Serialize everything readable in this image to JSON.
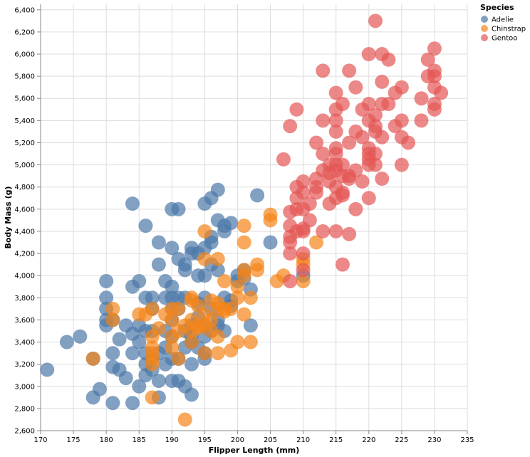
{
  "chart_data": {
    "type": "scatter",
    "xlabel": "Flipper Length (mm)",
    "ylabel": "Body Mass (g)",
    "xlim": [
      170,
      235
    ],
    "ylim": [
      2600,
      6450
    ],
    "x_ticks": [
      "170",
      "175",
      "180",
      "185",
      "190",
      "195",
      "200",
      "205",
      "210",
      "215",
      "220",
      "225",
      "230",
      "235"
    ],
    "y_ticks": [
      "2,600",
      "2,800",
      "3,000",
      "3,200",
      "3,400",
      "3,600",
      "3,800",
      "4,000",
      "4,200",
      "4,400",
      "4,600",
      "4,800",
      "5,000",
      "5,200",
      "5,400",
      "5,600",
      "5,800",
      "6,000",
      "6,200",
      "6,400"
    ],
    "grid": true,
    "legend": {
      "title": "Species",
      "placement": "top-right"
    },
    "series": [
      {
        "name": "Adelie",
        "color": "#4c78a8",
        "points": [
          [
            171,
            3150
          ],
          [
            174,
            3400
          ],
          [
            176,
            3450
          ],
          [
            178,
            2900
          ],
          [
            178,
            3250
          ],
          [
            179,
            2975
          ],
          [
            180,
            3550
          ],
          [
            180,
            3600
          ],
          [
            180,
            3700
          ],
          [
            180,
            3800
          ],
          [
            180,
            3950
          ],
          [
            181,
            2850
          ],
          [
            181,
            3300
          ],
          [
            181,
            3175
          ],
          [
            181,
            3600
          ],
          [
            182,
            3150
          ],
          [
            182,
            3425
          ],
          [
            183,
            3075
          ],
          [
            183,
            3550
          ],
          [
            184,
            2850
          ],
          [
            184,
            3300
          ],
          [
            184,
            3475
          ],
          [
            184,
            3900
          ],
          [
            184,
            4650
          ],
          [
            185,
            3550
          ],
          [
            185,
            3950
          ],
          [
            185,
            3400
          ],
          [
            185,
            3000
          ],
          [
            186,
            3100
          ],
          [
            186,
            3500
          ],
          [
            186,
            3800
          ],
          [
            186,
            4450
          ],
          [
            186,
            3300
          ],
          [
            186,
            3200
          ],
          [
            187,
            3250
          ],
          [
            187,
            3150
          ],
          [
            187,
            3800
          ],
          [
            187,
            3700
          ],
          [
            187,
            3500
          ],
          [
            188,
            2900
          ],
          [
            188,
            3300
          ],
          [
            188,
            3050
          ],
          [
            188,
            4100
          ],
          [
            188,
            4300
          ],
          [
            189,
            3200
          ],
          [
            189,
            3350
          ],
          [
            189,
            3800
          ],
          [
            189,
            3500
          ],
          [
            189,
            3950
          ],
          [
            190,
            3050
          ],
          [
            190,
            3250
          ],
          [
            190,
            3450
          ],
          [
            190,
            3600
          ],
          [
            190,
            3700
          ],
          [
            190,
            3800
          ],
          [
            190,
            3900
          ],
          [
            190,
            4250
          ],
          [
            190,
            4600
          ],
          [
            191,
            3050
          ],
          [
            191,
            3250
          ],
          [
            191,
            3700
          ],
          [
            191,
            3800
          ],
          [
            191,
            4150
          ],
          [
            191,
            4600
          ],
          [
            192,
            3000
          ],
          [
            192,
            3350
          ],
          [
            192,
            3500
          ],
          [
            192,
            3800
          ],
          [
            192,
            4050
          ],
          [
            192,
            4100
          ],
          [
            193,
            2925
          ],
          [
            193,
            3200
          ],
          [
            193,
            3400
          ],
          [
            193,
            3450
          ],
          [
            193,
            3550
          ],
          [
            193,
            4250
          ],
          [
            193,
            4200
          ],
          [
            194,
            3350
          ],
          [
            194,
            3625
          ],
          [
            194,
            3750
          ],
          [
            194,
            4000
          ],
          [
            194,
            4200
          ],
          [
            195,
            3250
          ],
          [
            195,
            3300
          ],
          [
            195,
            3450
          ],
          [
            195,
            3550
          ],
          [
            195,
            3800
          ],
          [
            195,
            4000
          ],
          [
            195,
            4250
          ],
          [
            195,
            4650
          ],
          [
            196,
            3500
          ],
          [
            196,
            3700
          ],
          [
            196,
            4300
          ],
          [
            196,
            4700
          ],
          [
            196,
            4100
          ],
          [
            196,
            4350
          ],
          [
            197,
            3550
          ],
          [
            197,
            4500
          ],
          [
            197,
            4775
          ],
          [
            197,
            4050
          ],
          [
            197,
            3600
          ],
          [
            198,
            3500
          ],
          [
            198,
            3800
          ],
          [
            198,
            4400
          ],
          [
            198,
            4450
          ],
          [
            199,
            3725
          ],
          [
            199,
            3775
          ],
          [
            199,
            4475
          ],
          [
            200,
            4000
          ],
          [
            200,
            3950
          ],
          [
            201,
            4050
          ],
          [
            201,
            3975
          ],
          [
            202,
            3550
          ],
          [
            202,
            3875
          ],
          [
            203,
            4725
          ],
          [
            205,
            4300
          ],
          [
            210,
            4000
          ]
        ]
      },
      {
        "name": "Chinstrap",
        "color": "#f58518",
        "points": [
          [
            178,
            3250
          ],
          [
            181,
            3700
          ],
          [
            181,
            3600
          ],
          [
            185,
            3650
          ],
          [
            186,
            3650
          ],
          [
            187,
            2900
          ],
          [
            187,
            3200
          ],
          [
            187,
            3250
          ],
          [
            187,
            3300
          ],
          [
            187,
            3350
          ],
          [
            187,
            3450
          ],
          [
            187,
            3700
          ],
          [
            188,
            3525
          ],
          [
            189,
            3650
          ],
          [
            190,
            3350
          ],
          [
            190,
            3450
          ],
          [
            190,
            3600
          ],
          [
            190,
            3700
          ],
          [
            191,
            3250
          ],
          [
            191,
            3500
          ],
          [
            191,
            3700
          ],
          [
            192,
            2700
          ],
          [
            192,
            3550
          ],
          [
            193,
            3400
          ],
          [
            193,
            3500
          ],
          [
            193,
            3600
          ],
          [
            193,
            3775
          ],
          [
            193,
            3800
          ],
          [
            194,
            3525
          ],
          [
            194,
            3550
          ],
          [
            194,
            3725
          ],
          [
            195,
            3300
          ],
          [
            195,
            3550
          ],
          [
            195,
            3650
          ],
          [
            195,
            4400
          ],
          [
            195,
            4150
          ],
          [
            196,
            3500
          ],
          [
            196,
            3600
          ],
          [
            196,
            3775
          ],
          [
            197,
            3300
          ],
          [
            197,
            3450
          ],
          [
            197,
            3700
          ],
          [
            197,
            3750
          ],
          [
            197,
            4150
          ],
          [
            198,
            3675
          ],
          [
            198,
            3700
          ],
          [
            198,
            3950
          ],
          [
            199,
            3325
          ],
          [
            199,
            3700
          ],
          [
            200,
            3400
          ],
          [
            200,
            3800
          ],
          [
            200,
            3900
          ],
          [
            201,
            3650
          ],
          [
            201,
            4000
          ],
          [
            201,
            4050
          ],
          [
            201,
            4300
          ],
          [
            201,
            4450
          ],
          [
            202,
            3400
          ],
          [
            202,
            3800
          ],
          [
            203,
            4050
          ],
          [
            203,
            4100
          ],
          [
            205,
            4500
          ],
          [
            205,
            4550
          ],
          [
            206,
            3950
          ],
          [
            207,
            4000
          ],
          [
            210,
            3950
          ],
          [
            210,
            4100
          ],
          [
            210,
            4150
          ],
          [
            212,
            4300
          ]
        ]
      },
      {
        "name": "Gentoo",
        "color": "#e45756",
        "points": [
          [
            207,
            5050
          ],
          [
            208,
            3950
          ],
          [
            208,
            4200
          ],
          [
            208,
            4300
          ],
          [
            208,
            4350
          ],
          [
            208,
            4450
          ],
          [
            208,
            4575
          ],
          [
            208,
            5350
          ],
          [
            209,
            4400
          ],
          [
            209,
            4600
          ],
          [
            209,
            4700
          ],
          [
            209,
            4800
          ],
          [
            209,
            5500
          ],
          [
            210,
            4050
          ],
          [
            210,
            4200
          ],
          [
            210,
            4400
          ],
          [
            210,
            4600
          ],
          [
            210,
            4750
          ],
          [
            210,
            4850
          ],
          [
            210,
            4425
          ],
          [
            211,
            4500
          ],
          [
            211,
            4650
          ],
          [
            212,
            4750
          ],
          [
            212,
            4800
          ],
          [
            212,
            4875
          ],
          [
            212,
            5200
          ],
          [
            213,
            4400
          ],
          [
            213,
            4950
          ],
          [
            213,
            5100
          ],
          [
            213,
            5400
          ],
          [
            213,
            5850
          ],
          [
            214,
            4650
          ],
          [
            214,
            4850
          ],
          [
            214,
            4925
          ],
          [
            214,
            5000
          ],
          [
            215,
            4400
          ],
          [
            215,
            4700
          ],
          [
            215,
            4950
          ],
          [
            215,
            5000
          ],
          [
            215,
            5150
          ],
          [
            215,
            5300
          ],
          [
            215,
            5400
          ],
          [
            215,
            5500
          ],
          [
            215,
            5650
          ],
          [
            215,
            5100
          ],
          [
            215,
            4800
          ],
          [
            216,
            4100
          ],
          [
            216,
            4750
          ],
          [
            216,
            5000
          ],
          [
            216,
            5550
          ],
          [
            216,
            4725
          ],
          [
            216,
            4900
          ],
          [
            217,
            4375
          ],
          [
            217,
            4875
          ],
          [
            217,
            4900
          ],
          [
            217,
            5200
          ],
          [
            217,
            5850
          ],
          [
            218,
            4600
          ],
          [
            218,
            4950
          ],
          [
            218,
            5300
          ],
          [
            218,
            5700
          ],
          [
            219,
            4850
          ],
          [
            219,
            5250
          ],
          [
            219,
            5500
          ],
          [
            220,
            4700
          ],
          [
            220,
            5000
          ],
          [
            220,
            5050
          ],
          [
            220,
            5150
          ],
          [
            220,
            5400
          ],
          [
            220,
            5550
          ],
          [
            220,
            6000
          ],
          [
            220,
            5100
          ],
          [
            221,
            5300
          ],
          [
            221,
            5350
          ],
          [
            221,
            5450
          ],
          [
            221,
            5000
          ],
          [
            221,
            5100
          ],
          [
            221,
            6300
          ],
          [
            222,
            4875
          ],
          [
            222,
            5250
          ],
          [
            222,
            5750
          ],
          [
            222,
            6000
          ],
          [
            222,
            5550
          ],
          [
            223,
            5550
          ],
          [
            223,
            5950
          ],
          [
            224,
            5350
          ],
          [
            224,
            5650
          ],
          [
            225,
            5000
          ],
          [
            225,
            5250
          ],
          [
            225,
            5400
          ],
          [
            225,
            5700
          ],
          [
            226,
            5200
          ],
          [
            228,
            5400
          ],
          [
            228,
            5600
          ],
          [
            229,
            5800
          ],
          [
            229,
            5950
          ],
          [
            230,
            5500
          ],
          [
            230,
            5550
          ],
          [
            230,
            5700
          ],
          [
            230,
            5800
          ],
          [
            230,
            5850
          ],
          [
            230,
            6050
          ],
          [
            231,
            5650
          ]
        ]
      }
    ]
  }
}
